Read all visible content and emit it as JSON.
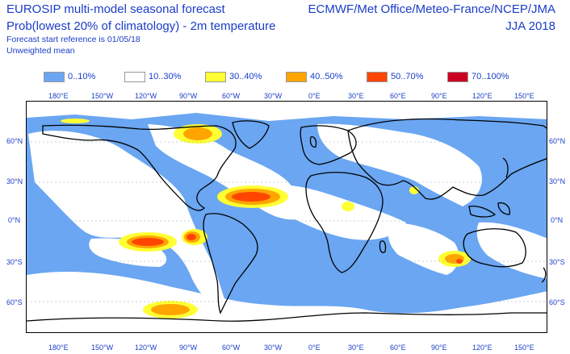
{
  "header": {
    "title_line1": "EUROSIP multi-model seasonal forecast",
    "title_line2": "Prob(lowest 20% of climatology) - 2m temperature",
    "reference": "Forecast start reference is 01/05/18",
    "weighting": "Unweighted mean",
    "centres": "ECMWF/Met Office/Meteo-France/NCEP/JMA",
    "season": "JJA 2018"
  },
  "legend": [
    {
      "label": "0..10%",
      "color": "#6aa6f2"
    },
    {
      "label": "10..30%",
      "color": "#ffffff"
    },
    {
      "label": "30..40%",
      "color": "#ffff33"
    },
    {
      "label": "40..50%",
      "color": "#ffa500"
    },
    {
      "label": "50..70%",
      "color": "#ff4500"
    },
    {
      "label": "70..100%",
      "color": "#cc0022"
    }
  ],
  "axes": {
    "lon_labels": [
      "180°E",
      "150°W",
      "120°W",
      "90°W",
      "60°W",
      "30°W",
      "0°E",
      "30°E",
      "60°E",
      "90°E",
      "120°E",
      "150°E"
    ],
    "lat_labels": [
      "60°N",
      "30°N",
      "0°N",
      "30°S",
      "60°S"
    ]
  }
}
